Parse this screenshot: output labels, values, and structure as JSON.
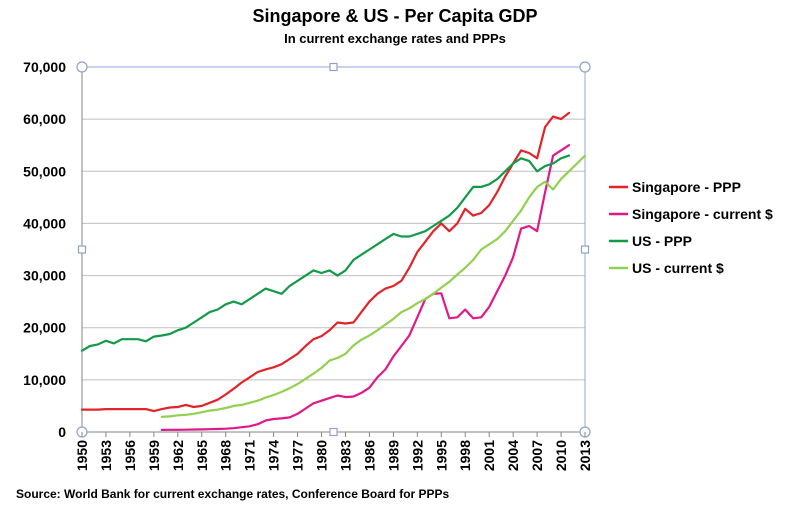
{
  "chart_data": {
    "type": "line",
    "title": "Singapore & US - Per Capita GDP",
    "subtitle": "In current exchange rates and PPPs",
    "source": "Source: World Bank for current exchange rates, Conference Board for PPPs",
    "xlabel": "",
    "ylabel": "",
    "xlim": [
      1950,
      2013
    ],
    "ylim": [
      0,
      70000
    ],
    "yticks": [
      0,
      10000,
      20000,
      30000,
      40000,
      50000,
      60000,
      70000
    ],
    "ytick_labels": [
      "0",
      "10,000",
      "20,000",
      "30,000",
      "40,000",
      "50,000",
      "60,000",
      "70,000"
    ],
    "xticks": [
      1950,
      1953,
      1956,
      1959,
      1962,
      1965,
      1968,
      1971,
      1974,
      1977,
      1980,
      1983,
      1986,
      1989,
      1992,
      1995,
      1998,
      2001,
      2004,
      2007,
      2010,
      2013
    ],
    "grid": true,
    "legend_position": "right",
    "series": [
      {
        "name": "Singapore - PPP",
        "color": "#e0242a",
        "start_year": 1950,
        "values": [
          4300,
          4300,
          4300,
          4400,
          4400,
          4400,
          4400,
          4400,
          4400,
          4000,
          4400,
          4700,
          4800,
          5200,
          4800,
          5000,
          5600,
          6200,
          7200,
          8300,
          9500,
          10500,
          11500,
          12000,
          12400,
          13000,
          14000,
          15000,
          16500,
          17800,
          18400,
          19500,
          21000,
          20800,
          21000,
          23000,
          25000,
          26500,
          27500,
          28000,
          29000,
          31500,
          34500,
          36500,
          38500,
          40000,
          38500,
          40000,
          42800,
          41500,
          42000,
          43500,
          46000,
          49000,
          51500,
          54000,
          53500,
          52500,
          58500,
          60500,
          60000,
          61200
        ]
      },
      {
        "name": "Singapore - current $",
        "color": "#e0198a",
        "start_year": 1960,
        "values": [
          400,
          420,
          430,
          450,
          470,
          500,
          540,
          580,
          640,
          720,
          920,
          1100,
          1500,
          2200,
          2500,
          2600,
          2800,
          3500,
          4500,
          5500,
          6000,
          6500,
          7000,
          6700,
          6800,
          7500,
          8500,
          10500,
          12000,
          14500,
          16500,
          18500,
          22000,
          25500,
          26500,
          26600,
          21800,
          22000,
          23500,
          21800,
          22000,
          24000,
          27000,
          30000,
          33500,
          39000,
          39500,
          38500,
          46000,
          53000,
          54000,
          55000
        ]
      },
      {
        "name": "US - PPP",
        "color": "#139a48",
        "start_year": 1950,
        "values": [
          15600,
          16500,
          16800,
          17500,
          17000,
          17800,
          17800,
          17800,
          17400,
          18300,
          18500,
          18800,
          19500,
          20000,
          21000,
          22000,
          23000,
          23500,
          24500,
          25000,
          24500,
          25500,
          26500,
          27500,
          27000,
          26500,
          28000,
          29000,
          30000,
          31000,
          30500,
          31000,
          30000,
          31000,
          33000,
          34000,
          35000,
          36000,
          37000,
          38000,
          37500,
          37500,
          38000,
          38500,
          39500,
          40500,
          41500,
          43000,
          45000,
          47000,
          47000,
          47500,
          48500,
          50000,
          51500,
          52500,
          52000,
          50000,
          51000,
          51500,
          52500,
          53000
        ]
      },
      {
        "name": "US - current $",
        "color": "#92d050",
        "start_year": 1960,
        "values": [
          2900,
          3000,
          3200,
          3300,
          3500,
          3800,
          4100,
          4300,
          4600,
          5000,
          5200,
          5600,
          6000,
          6600,
          7100,
          7700,
          8400,
          9200,
          10200,
          11200,
          12300,
          13700,
          14200,
          15000,
          16600,
          17700,
          18500,
          19500,
          20600,
          21700,
          23000,
          23700,
          24700,
          25500,
          26500,
          27700,
          28800,
          30200,
          31500,
          33000,
          35000,
          36000,
          37000,
          38500,
          40500,
          42500,
          45000,
          47000,
          48000,
          46500,
          48500,
          50000,
          51500,
          53000
        ]
      }
    ]
  }
}
